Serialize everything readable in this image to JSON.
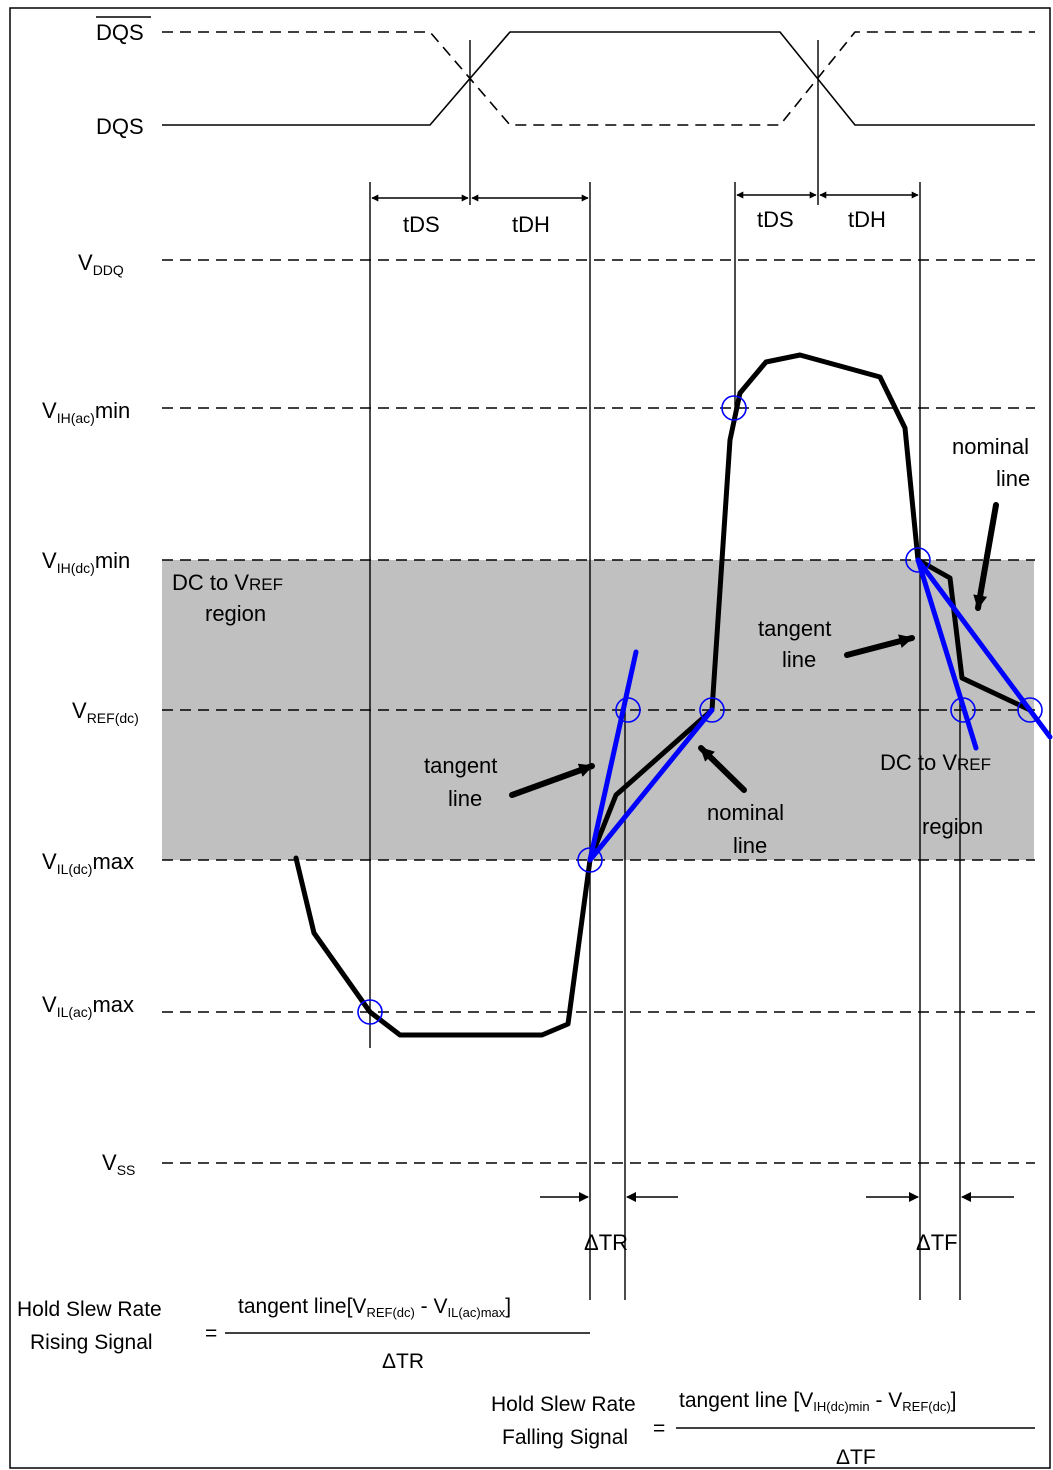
{
  "signals": {
    "dqs_bar": "DQS",
    "dqs": "DQS"
  },
  "timing": {
    "tds": "tDS",
    "tdh": "tDH"
  },
  "levels": {
    "vddq": {
      "main": "V",
      "sub": "DDQ",
      "suffix": ""
    },
    "vih_ac": {
      "main": "V",
      "sub": "IH(ac)",
      "suffix": "min"
    },
    "vih_dc": {
      "main": "V",
      "sub": "IH(dc)",
      "suffix": "min"
    },
    "vref_dc": {
      "main": "V",
      "sub": "REF(dc)",
      "suffix": ""
    },
    "vil_dc": {
      "main": "V",
      "sub": "IL(dc)",
      "suffix": "max"
    },
    "vil_ac": {
      "main": "V",
      "sub": "IL(ac)",
      "suffix": "max"
    },
    "vss": {
      "main": "V",
      "sub": "SS",
      "suffix": ""
    }
  },
  "annotations": {
    "dc_region_left": {
      "line1_a": "DC to V",
      "line1_b": "REF",
      "line2": "region"
    },
    "dc_region_right": {
      "line1_a": "DC to V",
      "line1_b": "REF",
      "line2": "region"
    },
    "tangent_left": {
      "line1": "tangent",
      "line2": "line"
    },
    "nominal_left": {
      "line1": "nominal",
      "line2": "line"
    },
    "tangent_right": {
      "line1": "tangent",
      "line2": "line"
    },
    "nominal_right": {
      "line1": "nominal",
      "line2": "line"
    }
  },
  "deltas": {
    "tr": "ΔTR",
    "tf": "ΔTF"
  },
  "formulas": {
    "rising": {
      "label1": "Hold Slew Rate",
      "label2": "Rising Signal",
      "equals": "=",
      "num_a": "tangent line[V",
      "num_s1": "REF(dc)",
      "num_b": " - V",
      "num_s2": "IL(ac)max",
      "num_c": "]",
      "denominator": "ΔTR"
    },
    "falling": {
      "label1": "Hold Slew Rate",
      "label2": "Falling Signal",
      "equals": "=",
      "num_a": "tangent line [V",
      "num_s1": "IH(dc)min",
      "num_b": " - V",
      "num_s2": "REF(dc)",
      "num_c": "]",
      "denominator": "ΔTF"
    }
  },
  "colors": {
    "signal": "#000000",
    "tangent": "#0000ff",
    "region": "#c0c0c0"
  }
}
